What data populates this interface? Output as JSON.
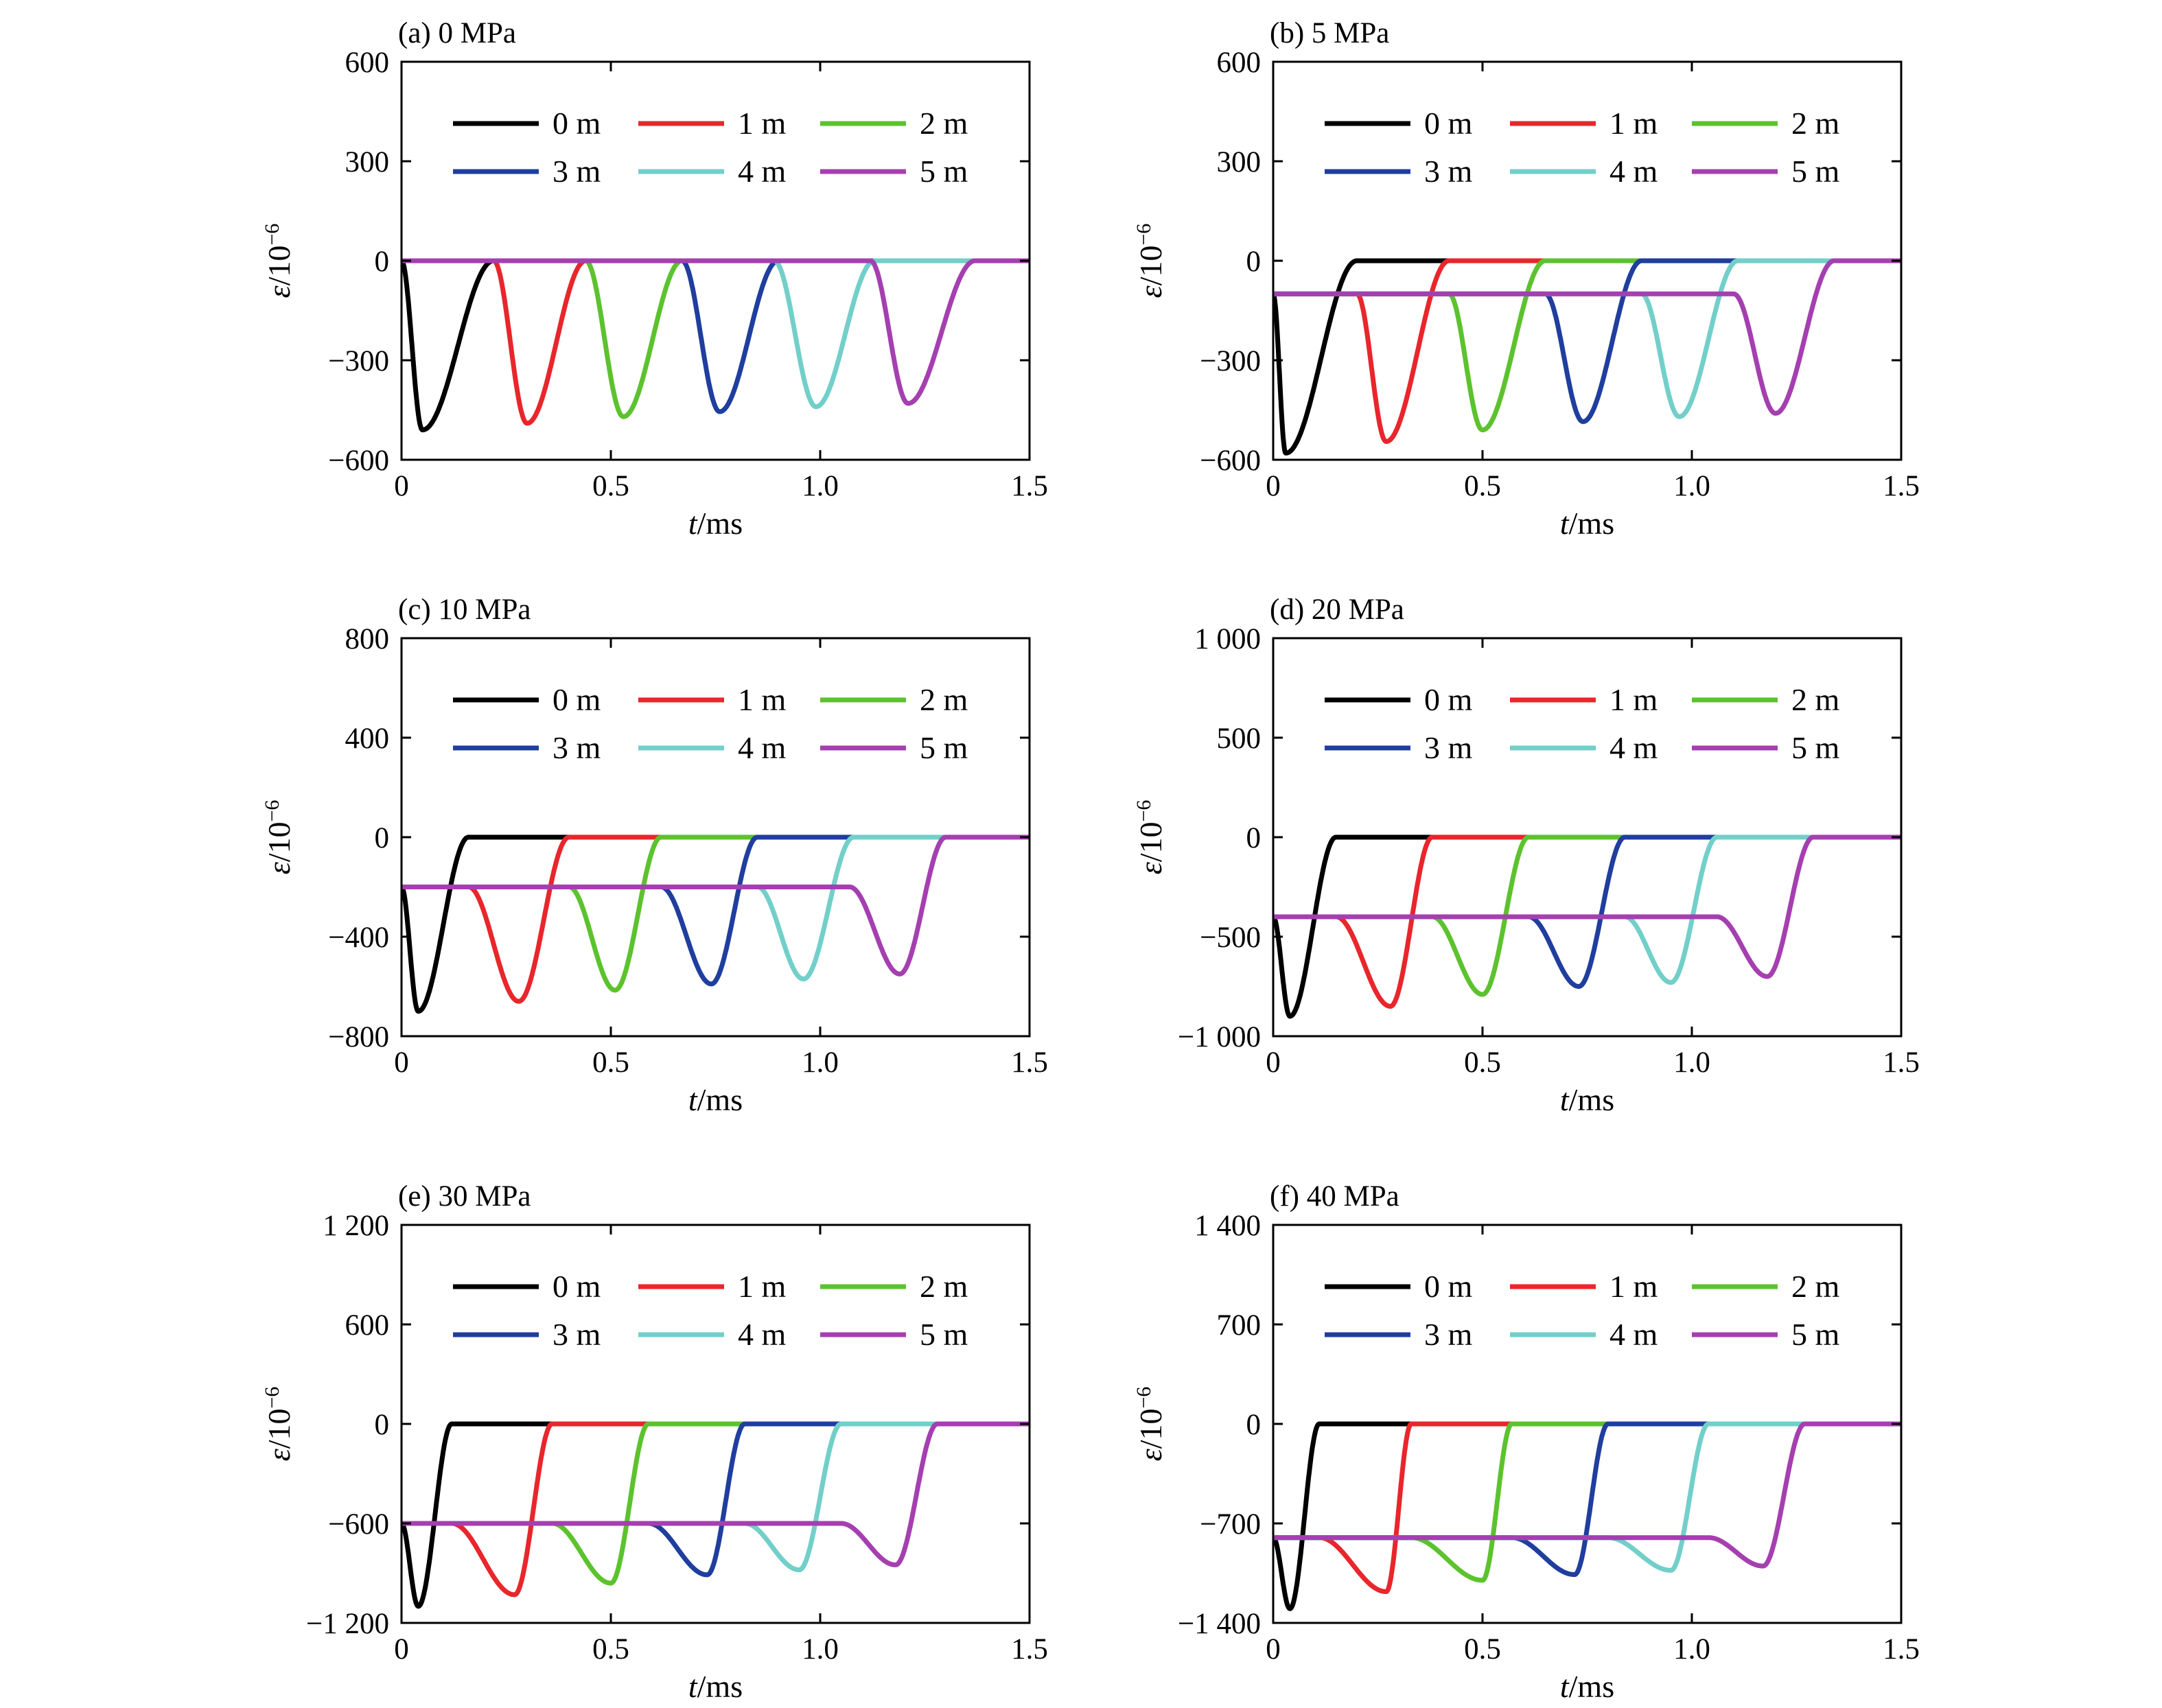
{
  "series_colors": [
    "#000000",
    "#e8262b",
    "#5cc22e",
    "#1f3e9e",
    "#72cfc9",
    "#a53fb0"
  ],
  "chart_data": [
    {
      "type": "line",
      "title": "(a) 0 MPa",
      "xlabel_italic": "t",
      "xlabel_unit": "/ms",
      "ylabel_italic": "ε",
      "ylabel_base": "/10",
      "ylabel_exp": "−6",
      "xlim": [
        0,
        1.5
      ],
      "ylim": [
        -600,
        600
      ],
      "xticks": [
        0,
        0.5,
        1.0,
        1.5
      ],
      "xtick_labels": [
        "0",
        "0.5",
        "1.0",
        "1.5"
      ],
      "yticks": [
        -600,
        -300,
        0,
        300,
        600
      ],
      "ytick_labels": [
        "−600",
        "−300",
        "0",
        "300",
        "600"
      ],
      "legend_position": "top",
      "baseline": 0,
      "series": [
        {
          "name": "0 m",
          "start": 0.0,
          "peak_t": 0.05,
          "peak": -510,
          "end": 0.22
        },
        {
          "name": "1 m",
          "start": 0.22,
          "peak_t": 0.3,
          "peak": -490,
          "end": 0.44
        },
        {
          "name": "2 m",
          "start": 0.44,
          "peak_t": 0.53,
          "peak": -470,
          "end": 0.67
        },
        {
          "name": "3 m",
          "start": 0.67,
          "peak_t": 0.76,
          "peak": -455,
          "end": 0.9
        },
        {
          "name": "4 m",
          "start": 0.89,
          "peak_t": 0.99,
          "peak": -440,
          "end": 1.13
        },
        {
          "name": "5 m",
          "start": 1.12,
          "peak_t": 1.21,
          "peak": -430,
          "end": 1.37
        }
      ]
    },
    {
      "type": "line",
      "title": "(b) 5 MPa",
      "xlabel_italic": "t",
      "xlabel_unit": "/ms",
      "ylabel_italic": "ε",
      "ylabel_base": "/10",
      "ylabel_exp": "−6",
      "xlim": [
        0,
        1.5
      ],
      "ylim": [
        -600,
        600
      ],
      "xticks": [
        0,
        0.5,
        1.0,
        1.5
      ],
      "xtick_labels": [
        "0",
        "0.5",
        "1.0",
        "1.5"
      ],
      "yticks": [
        -600,
        -300,
        0,
        300,
        600
      ],
      "ytick_labels": [
        "−600",
        "−300",
        "0",
        "300",
        "600"
      ],
      "legend_position": "top",
      "baseline": -100,
      "series": [
        {
          "name": "0 m",
          "start": 0.0,
          "peak_t": 0.03,
          "peak": -580,
          "end": 0.2
        },
        {
          "name": "1 m",
          "start": 0.2,
          "peak_t": 0.27,
          "peak": -545,
          "end": 0.42
        },
        {
          "name": "2 m",
          "start": 0.42,
          "peak_t": 0.5,
          "peak": -510,
          "end": 0.65
        },
        {
          "name": "3 m",
          "start": 0.65,
          "peak_t": 0.74,
          "peak": -485,
          "end": 0.88
        },
        {
          "name": "4 m",
          "start": 0.88,
          "peak_t": 0.97,
          "peak": -470,
          "end": 1.11
        },
        {
          "name": "5 m",
          "start": 1.1,
          "peak_t": 1.2,
          "peak": -460,
          "end": 1.34
        }
      ]
    },
    {
      "type": "line",
      "title": "(c) 10 MPa",
      "xlabel_italic": "t",
      "xlabel_unit": "/ms",
      "ylabel_italic": "ε",
      "ylabel_base": "/10",
      "ylabel_exp": "−6",
      "xlim": [
        0,
        1.5
      ],
      "ylim": [
        -800,
        800
      ],
      "xticks": [
        0,
        0.5,
        1.0,
        1.5
      ],
      "xtick_labels": [
        "0",
        "0.5",
        "1.0",
        "1.5"
      ],
      "yticks": [
        -800,
        -400,
        0,
        400,
        800
      ],
      "ytick_labels": [
        "−800",
        "−400",
        "0",
        "400",
        "800"
      ],
      "legend_position": "top",
      "baseline": -200,
      "series": [
        {
          "name": "0 m",
          "start": 0.0,
          "peak_t": 0.04,
          "peak": -700,
          "end": 0.16
        },
        {
          "name": "1 m",
          "start": 0.16,
          "peak_t": 0.28,
          "peak": -660,
          "end": 0.4
        },
        {
          "name": "2 m",
          "start": 0.4,
          "peak_t": 0.51,
          "peak": -615,
          "end": 0.62
        },
        {
          "name": "3 m",
          "start": 0.62,
          "peak_t": 0.74,
          "peak": -590,
          "end": 0.85
        },
        {
          "name": "4 m",
          "start": 0.85,
          "peak_t": 0.96,
          "peak": -570,
          "end": 1.08
        },
        {
          "name": "5 m",
          "start": 1.07,
          "peak_t": 1.19,
          "peak": -550,
          "end": 1.3
        }
      ]
    },
    {
      "type": "line",
      "title": "(d) 20 MPa",
      "xlabel_italic": "t",
      "xlabel_unit": "/ms",
      "ylabel_italic": "ε",
      "ylabel_base": "/10",
      "ylabel_exp": "−6",
      "xlim": [
        0,
        1.5
      ],
      "ylim": [
        -1000,
        1000
      ],
      "xticks": [
        0,
        0.5,
        1.0,
        1.5
      ],
      "xtick_labels": [
        "0",
        "0.5",
        "1.0",
        "1.5"
      ],
      "yticks": [
        -1000,
        -500,
        0,
        500,
        1000
      ],
      "ytick_labels": [
        "−1 000",
        "−500",
        "0",
        "500",
        "1 000"
      ],
      "legend_position": "top",
      "baseline": -400,
      "series": [
        {
          "name": "0 m",
          "start": 0.0,
          "peak_t": 0.04,
          "peak": -900,
          "end": 0.15
        },
        {
          "name": "1 m",
          "start": 0.15,
          "peak_t": 0.28,
          "peak": -850,
          "end": 0.38
        },
        {
          "name": "2 m",
          "start": 0.38,
          "peak_t": 0.5,
          "peak": -790,
          "end": 0.61
        },
        {
          "name": "3 m",
          "start": 0.61,
          "peak_t": 0.73,
          "peak": -750,
          "end": 0.84
        },
        {
          "name": "4 m",
          "start": 0.84,
          "peak_t": 0.95,
          "peak": -730,
          "end": 1.06
        },
        {
          "name": "5 m",
          "start": 1.06,
          "peak_t": 1.18,
          "peak": -700,
          "end": 1.29
        }
      ]
    },
    {
      "type": "line",
      "title": "(e) 30 MPa",
      "xlabel_italic": "t",
      "xlabel_unit": "/ms",
      "ylabel_italic": "ε",
      "ylabel_base": "/10",
      "ylabel_exp": "−6",
      "xlim": [
        0,
        1.5
      ],
      "ylim": [
        -1200,
        1200
      ],
      "xticks": [
        0,
        0.5,
        1.0,
        1.5
      ],
      "xtick_labels": [
        "0",
        "0.5",
        "1.0",
        "1.5"
      ],
      "yticks": [
        -1200,
        -600,
        0,
        600,
        1200
      ],
      "ytick_labels": [
        "−1 200",
        "−600",
        "0",
        "600",
        "1 200"
      ],
      "legend_position": "top",
      "baseline": -600,
      "series": [
        {
          "name": "0 m",
          "start": 0.0,
          "peak_t": 0.04,
          "peak": -1100,
          "end": 0.12
        },
        {
          "name": "1 m",
          "start": 0.12,
          "peak_t": 0.27,
          "peak": -1030,
          "end": 0.36
        },
        {
          "name": "2 m",
          "start": 0.36,
          "peak_t": 0.5,
          "peak": -960,
          "end": 0.59
        },
        {
          "name": "3 m",
          "start": 0.59,
          "peak_t": 0.73,
          "peak": -910,
          "end": 0.82
        },
        {
          "name": "4 m",
          "start": 0.82,
          "peak_t": 0.95,
          "peak": -880,
          "end": 1.05
        },
        {
          "name": "5 m",
          "start": 1.05,
          "peak_t": 1.18,
          "peak": -850,
          "end": 1.28
        }
      ]
    },
    {
      "type": "line",
      "title": "(f) 40 MPa",
      "xlabel_italic": "t",
      "xlabel_unit": "/ms",
      "ylabel_italic": "ε",
      "ylabel_base": "/10",
      "ylabel_exp": "−6",
      "xlim": [
        0,
        1.5
      ],
      "ylim": [
        -1400,
        1400
      ],
      "xticks": [
        0,
        0.5,
        1.0,
        1.5
      ],
      "xtick_labels": [
        "0",
        "0.5",
        "1.0",
        "1.5"
      ],
      "yticks": [
        -1400,
        -700,
        0,
        700,
        1400
      ],
      "ytick_labels": [
        "−1 400",
        "−700",
        "0",
        "700",
        "1 400"
      ],
      "legend_position": "top",
      "baseline": -800,
      "series": [
        {
          "name": "0 m",
          "start": 0.0,
          "peak_t": 0.04,
          "peak": -1300,
          "end": 0.11
        },
        {
          "name": "1 m",
          "start": 0.11,
          "peak_t": 0.27,
          "peak": -1180,
          "end": 0.33
        },
        {
          "name": "2 m",
          "start": 0.33,
          "peak_t": 0.5,
          "peak": -1100,
          "end": 0.57
        },
        {
          "name": "3 m",
          "start": 0.57,
          "peak_t": 0.72,
          "peak": -1060,
          "end": 0.8
        },
        {
          "name": "4 m",
          "start": 0.8,
          "peak_t": 0.95,
          "peak": -1030,
          "end": 1.04
        },
        {
          "name": "5 m",
          "start": 1.04,
          "peak_t": 1.17,
          "peak": -1000,
          "end": 1.27
        }
      ]
    }
  ]
}
